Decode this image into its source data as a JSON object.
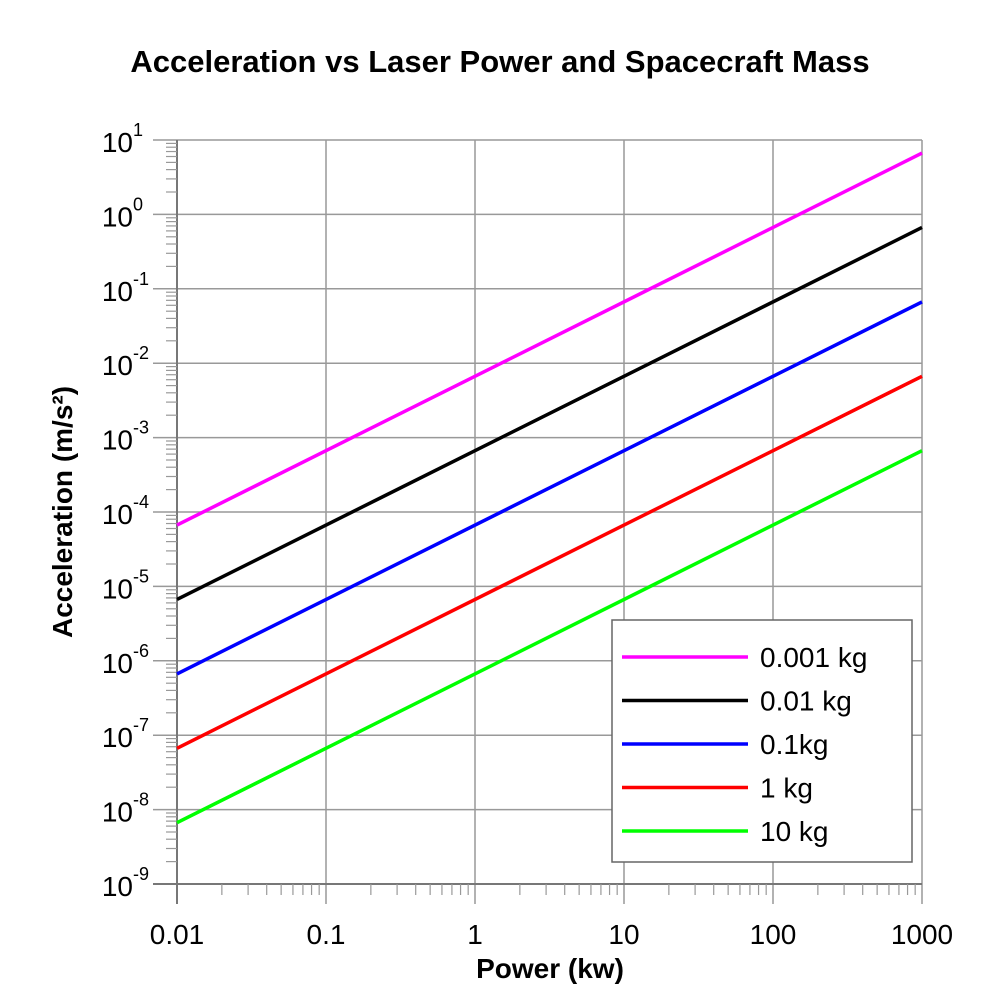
{
  "chart_data": {
    "type": "line",
    "title": "Acceleration vs Laser Power and Spacecraft Mass",
    "xlabel": "Power (kw)",
    "ylabel": "Acceleration (m/s²)",
    "xscale": "log",
    "yscale": "log",
    "xlim": [
      0.01,
      1000
    ],
    "ylim": [
      1e-09,
      10
    ],
    "x_ticks": [
      {
        "value": 0.01,
        "label": "0.01"
      },
      {
        "value": 0.1,
        "label": "0.1"
      },
      {
        "value": 1,
        "label": "1"
      },
      {
        "value": 10,
        "label": "10"
      },
      {
        "value": 100,
        "label": "100"
      },
      {
        "value": 1000,
        "label": "1000"
      }
    ],
    "y_ticks": [
      {
        "value": 10,
        "base": "10",
        "exp": "1"
      },
      {
        "value": 1,
        "base": "10",
        "exp": "0"
      },
      {
        "value": 0.1,
        "base": "10",
        "exp": "-1"
      },
      {
        "value": 0.01,
        "base": "10",
        "exp": "-2"
      },
      {
        "value": 0.001,
        "base": "10",
        "exp": "-3"
      },
      {
        "value": 0.0001,
        "base": "10",
        "exp": "-4"
      },
      {
        "value": 1e-05,
        "base": "10",
        "exp": "-5"
      },
      {
        "value": 1e-06,
        "base": "10",
        "exp": "-6"
      },
      {
        "value": 1e-07,
        "base": "10",
        "exp": "-7"
      },
      {
        "value": 1e-08,
        "base": "10",
        "exp": "-8"
      },
      {
        "value": 1e-09,
        "base": "10",
        "exp": "-9"
      }
    ],
    "grid": true,
    "legend_position": "bottom-right",
    "series": [
      {
        "name": "0.001 kg",
        "color": "#ff00ff",
        "x": [
          0.01,
          1000
        ],
        "y": [
          6.67e-05,
          6.67
        ]
      },
      {
        "name": "0.01 kg",
        "color": "#000000",
        "x": [
          0.01,
          1000
        ],
        "y": [
          6.67e-06,
          0.667
        ]
      },
      {
        "name": "0.1kg",
        "color": "#0000ff",
        "x": [
          0.01,
          1000
        ],
        "y": [
          6.67e-07,
          0.0667
        ]
      },
      {
        "name": "1 kg",
        "color": "#ff0000",
        "x": [
          0.01,
          1000
        ],
        "y": [
          6.67e-08,
          0.00667
        ]
      },
      {
        "name": "10 kg",
        "color": "#00ff00",
        "x": [
          0.01,
          1000
        ],
        "y": [
          6.67e-09,
          0.000667
        ]
      }
    ]
  }
}
